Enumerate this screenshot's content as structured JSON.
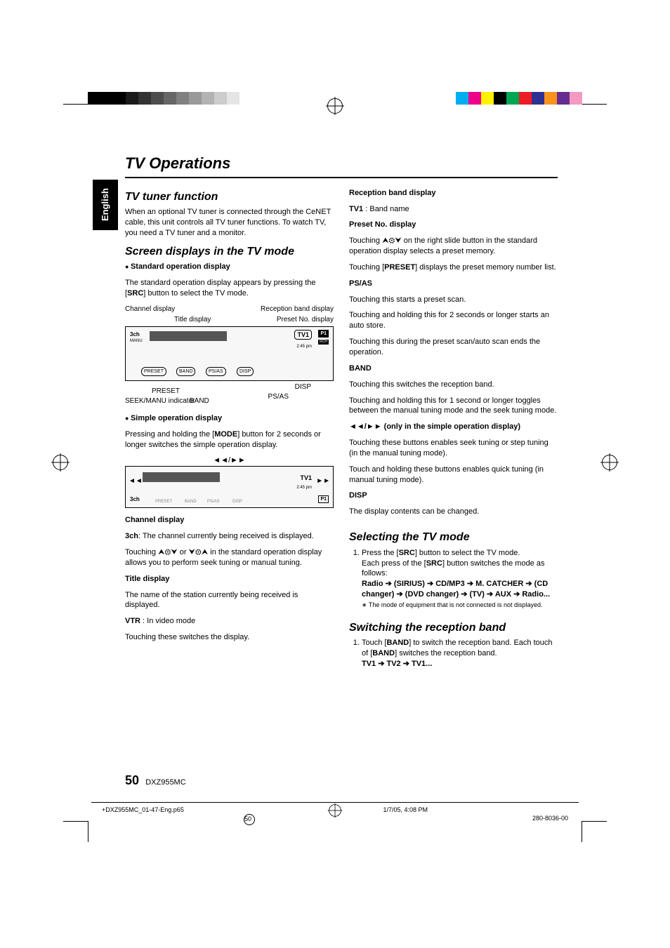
{
  "sideTab": "English",
  "pageTitle": "TV Operations",
  "pageNumber": "50",
  "model": "DXZ955MC",
  "footer": {
    "file": "+DXZ955MC_01-47-Eng.p65",
    "page": "50",
    "datetime": "1/7/05, 4:08 PM",
    "code": "280-8036-00"
  },
  "regColors": {
    "grays": [
      "#000000",
      "#000000",
      "#000000",
      "#1a1a1a",
      "#333333",
      "#4d4d4d",
      "#666666",
      "#808080",
      "#999999",
      "#b3b3b3",
      "#cccccc",
      "#e5e5e5"
    ],
    "colors": [
      "#00aeef",
      "#ec008c",
      "#fff200",
      "#000000",
      "#00a651",
      "#ed1c24",
      "#2e3192",
      "#f7941d",
      "#662d91",
      "#f49ac1"
    ]
  },
  "left": {
    "h_tuner": "TV tuner function",
    "p_tuner": "When an optional TV tuner is connected through the CeNET cable, this unit controls all TV tuner functions. To watch TV, you need a TV tuner and a monitor.",
    "h_screen": "Screen displays in the TV mode",
    "b_std": "Standard operation display",
    "p_std": "The standard operation display appears by pressing the [",
    "p_std_b": "SRC",
    "p_std2": "] button to select the TV mode.",
    "annot": {
      "channel": "Channel display",
      "title": "Title display",
      "reception": "Reception band display",
      "presetno": "Preset No. display",
      "preset": "PRESET",
      "seek": "SEEK/MANU indicator",
      "band": "BAND",
      "psas": "PS/AS",
      "disp": "DISP"
    },
    "fig1": {
      "ch": "3ch",
      "manu": "MANU",
      "preset": "PRESET",
      "band": "BAND",
      "psas": "PS/AS",
      "disp": "DISP",
      "tv1": "TV1",
      "p1": "P1",
      "rch": "RCH",
      "time": "2:45 pm"
    },
    "b_simple": "Simple operation display",
    "p_simple1": "Pressing and holding the [",
    "p_simple_b": "MODE",
    "p_simple2": "] button for 2 seconds or longer switches the simple operation display.",
    "fig2_seek": "◄◄/►►",
    "h_chdisp": "Channel display",
    "p_chdisp1a": "3ch",
    "p_chdisp1b": ": The channel currently being received is displayed.",
    "p_chdisp2a": "Touching ",
    "p_chdisp2b": " or ",
    "p_chdisp2c": " in the standard operation display allows you to perform seek tuning or manual tuning.",
    "h_titledisp": "Title display",
    "p_titledisp": "The name of the station currently being received is displayed.",
    "p_vtr_b": "VTR",
    "p_vtr": " : In video mode",
    "p_vtr2": "Touching these switches the display."
  },
  "right": {
    "h_recband": "Reception band display",
    "p_recband_b": "TV1",
    "p_recband": " : Band name",
    "h_presetno": "Preset No. display",
    "p_presetno1": "Touching ",
    "p_presetno2": " on the right slide button in the standard operation display selects a preset memory.",
    "p_presetno3a": "Touching [",
    "p_presetno3b": "PRESET",
    "p_presetno3c": "] displays the preset memory number list.",
    "h_psas": "PS/AS",
    "p_psas1": "Touching this starts a preset scan.",
    "p_psas2": "Touching and holding this for 2 seconds or longer starts an auto store.",
    "p_psas3": "Touching this during the preset scan/auto scan ends the operation.",
    "h_band": "BAND",
    "p_band1": "Touching this switches the reception band.",
    "p_band2": "Touching and holding this for 1 second or longer toggles between the manual tuning mode and the seek tuning mode.",
    "h_seek": "◄◄/►► (only in the simple operation display)",
    "p_seek1": "Touching these buttons enables seek tuning or step tuning (in the manual tuning mode).",
    "p_seek2": "Touch and holding these buttons enables quick tuning (in manual tuning mode).",
    "h_disp": "DISP",
    "p_disp": "The display contents can be changed.",
    "h_select": "Selecting the TV mode",
    "li1a": "Press the [",
    "li1b": "SRC",
    "li1c": "] button to select the TV mode.",
    "li1d": "Each press of the [",
    "li1e": "SRC",
    "li1f": "] button switches the mode as follows:",
    "modes": "Radio ➔ (SIRIUS) ➔ CD/MP3 ➔ M. CATCHER ➔ (CD changer) ➔ (DVD changer) ➔ (TV) ➔ AUX ➔ Radio...",
    "note": "∗ The mode of equipment that is not connected is not displayed.",
    "h_switch": "Switching the reception band",
    "sw_li1a": "Touch [",
    "sw_li1b": "BAND",
    "sw_li1c": "] to switch the reception band. Each touch of [",
    "sw_li1d": "BAND",
    "sw_li1e": "] switches the reception band.",
    "sw_seq": "TV1 ➔ TV2 ➔ TV1..."
  }
}
